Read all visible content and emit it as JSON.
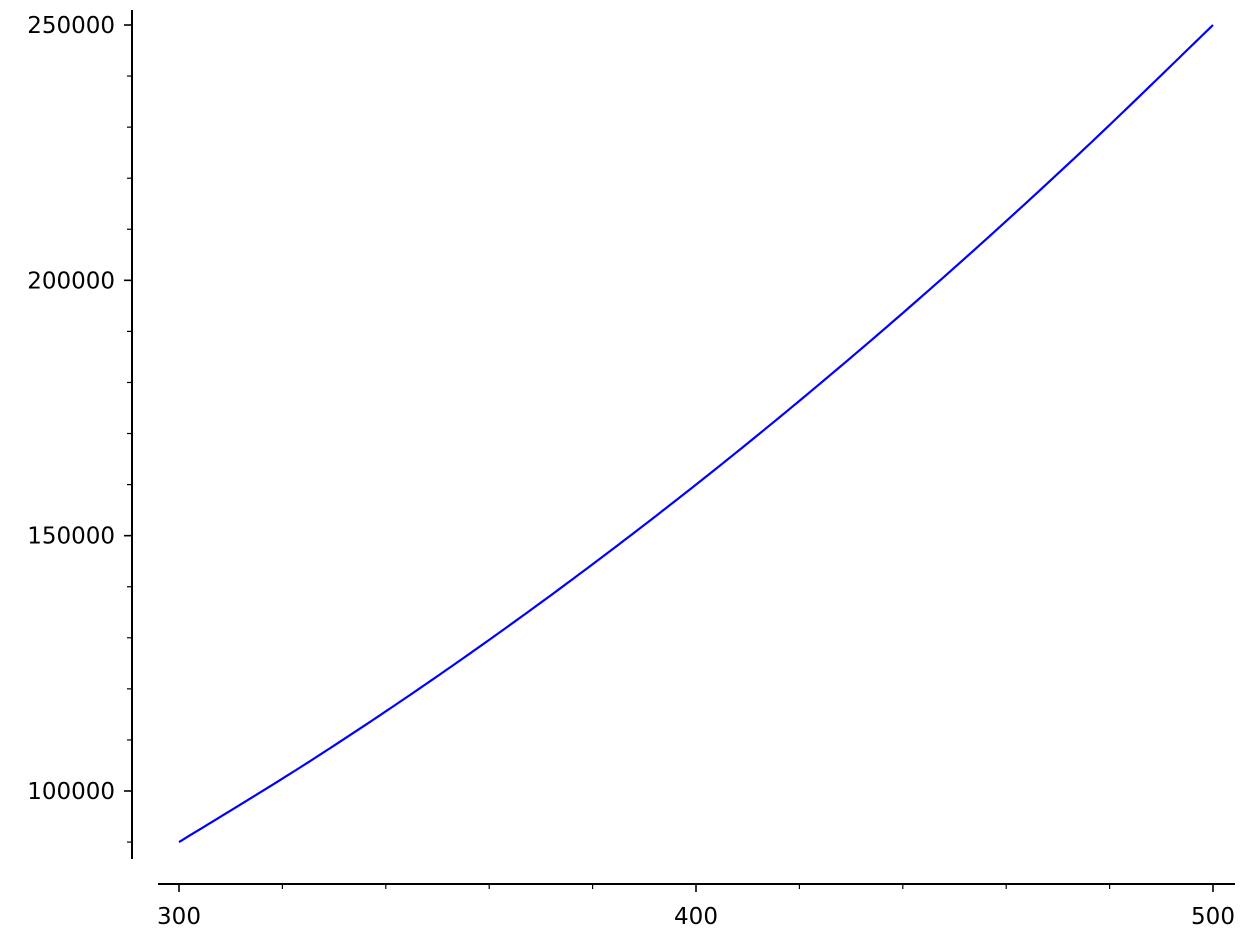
{
  "chart_data": {
    "type": "line",
    "title": "",
    "xlabel": "",
    "ylabel": "",
    "xlim": [
      296,
      504
    ],
    "ylim": [
      86500,
      253000
    ],
    "grid": false,
    "x_major_ticks": [
      300,
      400,
      500
    ],
    "x_tick_labels": [
      "300",
      "400",
      "500"
    ],
    "x_minor_ticks": [
      320,
      340,
      360,
      380,
      420,
      440,
      460,
      480
    ],
    "y_major_ticks": [
      100000,
      150000,
      200000,
      250000
    ],
    "y_tick_labels": [
      "100000",
      "150000",
      "200000",
      "250000"
    ],
    "y_minor_ticks": [
      90000,
      110000,
      120000,
      130000,
      140000,
      160000,
      170000,
      180000,
      190000,
      210000,
      220000,
      230000,
      240000
    ],
    "series": [
      {
        "color": "#0000ff",
        "x": [
          300,
          325,
          350,
          375,
          400,
          425,
          450,
          475,
          500
        ],
        "y": [
          90000,
          105625,
          122500,
          140625,
          160000,
          180625,
          202500,
          225625,
          250000
        ]
      }
    ]
  }
}
